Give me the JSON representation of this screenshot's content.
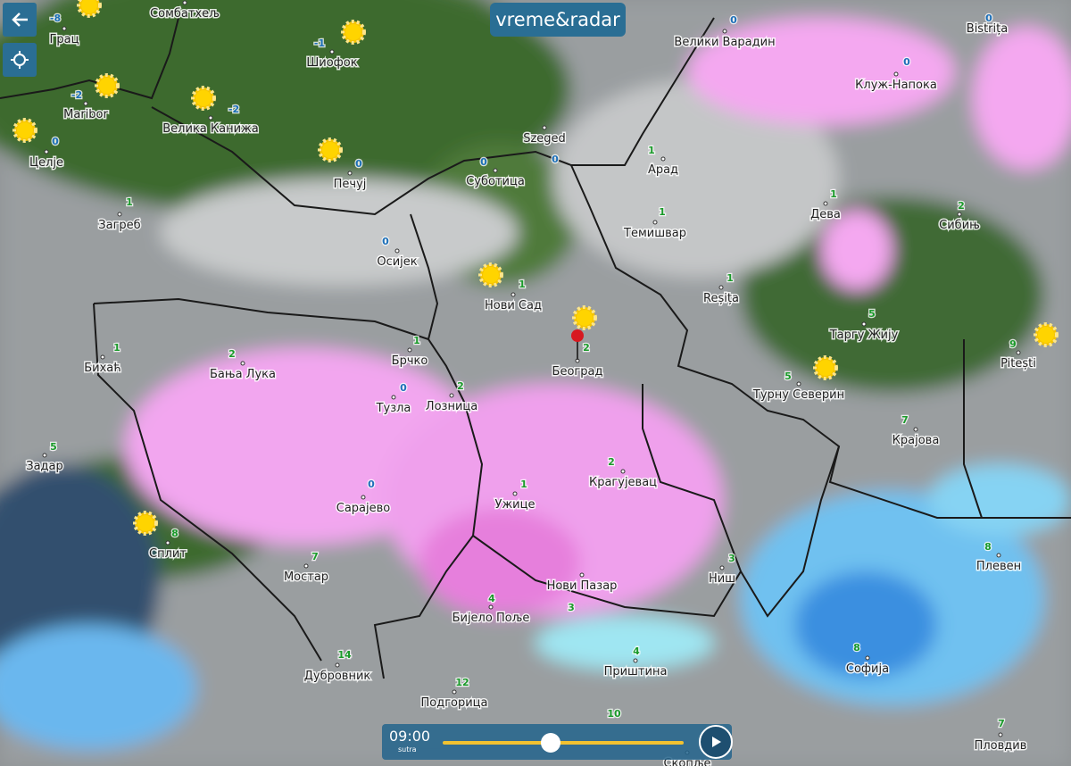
{
  "logo": "vreme&radar",
  "timeline": {
    "time": "09:00",
    "day": "sutra"
  },
  "places": [
    {
      "name": "Грац",
      "temp": "-8"
    },
    {
      "name": "Сомбатхељ"
    },
    {
      "name": "Шиофок",
      "temp": "-1"
    },
    {
      "name": "Maribor",
      "temp": "-2"
    },
    {
      "name": "Велика Канижа",
      "temp": "-2"
    },
    {
      "name": "Целје",
      "temp": "0"
    },
    {
      "name": "Печуј",
      "temp": "0"
    },
    {
      "name": "Загреб",
      "temp": "1"
    },
    {
      "name": "Szeged",
      "temp": "0"
    },
    {
      "name": "Суботица",
      "temp": "0"
    },
    {
      "name": "Велики Варадин",
      "temp": "0"
    },
    {
      "name": "Bistrița",
      "temp": "0"
    },
    {
      "name": "Клуж-Напока",
      "temp": "0"
    },
    {
      "name": "Арад",
      "temp": "1"
    },
    {
      "name": "Дева",
      "temp": "1"
    },
    {
      "name": "Сибињ",
      "temp": "2"
    },
    {
      "name": "Темишвар",
      "temp": "1"
    },
    {
      "name": "Осијек",
      "temp": "0"
    },
    {
      "name": "Нови Сад",
      "temp": "1"
    },
    {
      "name": "Reșița",
      "temp": "1"
    },
    {
      "name": "Таргу Жију",
      "temp": "5"
    },
    {
      "name": "Pitești",
      "temp": "9"
    },
    {
      "name": "Бихаћ",
      "temp": "1"
    },
    {
      "name": "Бања Лука",
      "temp": "2"
    },
    {
      "name": "Брчко",
      "temp": "1"
    },
    {
      "name": "Београд",
      "temp": "2"
    },
    {
      "name": "Турну Северин",
      "temp": "5"
    },
    {
      "name": "Тузла",
      "temp": "0"
    },
    {
      "name": "Лозница",
      "temp": "2"
    },
    {
      "name": "Крајова",
      "temp": "7"
    },
    {
      "name": "Задар",
      "temp": "5"
    },
    {
      "name": "Крагујевац",
      "temp": "2"
    },
    {
      "name": "Сарајево",
      "temp": "0"
    },
    {
      "name": "Ужице",
      "temp": "1"
    },
    {
      "name": "Сплит",
      "temp": "8"
    },
    {
      "name": "Мостар",
      "temp": "7"
    },
    {
      "name": "Ниш",
      "temp": "3"
    },
    {
      "name": "Плевен",
      "temp": "8"
    },
    {
      "name": "Нови Пазар",
      "temp": "3"
    },
    {
      "name": "Бијело Поље",
      "temp": "4"
    },
    {
      "name": "Приштина",
      "temp": "4"
    },
    {
      "name": "Софија",
      "temp": "8"
    },
    {
      "name": "Дубровник",
      "temp": "14"
    },
    {
      "name": "Подгорица",
      "temp": "12"
    },
    {
      "temp": "10"
    },
    {
      "name": "Пловдив",
      "temp": "7"
    },
    {
      "name": "Скопље"
    }
  ]
}
